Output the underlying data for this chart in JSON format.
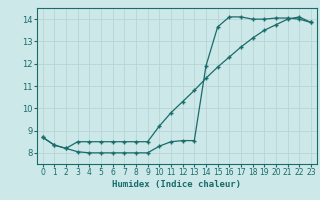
{
  "xlabel": "Humidex (Indice chaleur)",
  "xlim": [
    -0.5,
    23.5
  ],
  "ylim": [
    7.5,
    14.5
  ],
  "xticks": [
    0,
    1,
    2,
    3,
    4,
    5,
    6,
    7,
    8,
    9,
    10,
    11,
    12,
    13,
    14,
    15,
    16,
    17,
    18,
    19,
    20,
    21,
    22,
    23
  ],
  "yticks": [
    8,
    9,
    10,
    11,
    12,
    13,
    14
  ],
  "bg_color": "#cde8e8",
  "grid_color": "#b8d4d4",
  "line_color": "#1a6b6b",
  "curve1_x": [
    0,
    1,
    2,
    3,
    4,
    5,
    6,
    7,
    8,
    9,
    10,
    11,
    12,
    13,
    14,
    15,
    16,
    17,
    18,
    19,
    20,
    21,
    22,
    23
  ],
  "curve1_y": [
    8.7,
    8.35,
    8.2,
    8.05,
    8.0,
    8.0,
    8.0,
    8.0,
    8.0,
    8.0,
    8.3,
    8.5,
    8.55,
    8.55,
    11.9,
    13.65,
    14.1,
    14.1,
    14.0,
    14.0,
    14.05,
    14.05,
    14.0,
    13.85
  ],
  "curve2_x": [
    0,
    1,
    2,
    3,
    4,
    5,
    6,
    7,
    8,
    9,
    10,
    11,
    12,
    13,
    14,
    15,
    16,
    17,
    18,
    19,
    20,
    21,
    22,
    23
  ],
  "curve2_y": [
    8.7,
    8.35,
    8.2,
    8.5,
    8.5,
    8.5,
    8.5,
    8.5,
    8.5,
    8.5,
    9.2,
    9.8,
    10.3,
    10.8,
    11.35,
    11.85,
    12.3,
    12.75,
    13.15,
    13.5,
    13.75,
    14.0,
    14.1,
    13.85
  ]
}
